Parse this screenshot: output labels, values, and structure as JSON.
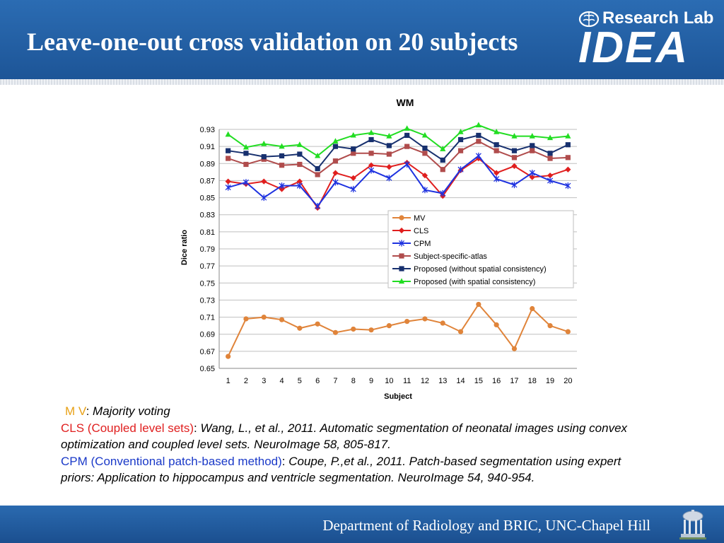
{
  "slide": {
    "title": "Leave-one-out cross validation on 20 subjects",
    "footer": "Department of Radiology and BRIC, UNC-Chapel Hill"
  },
  "logo": {
    "lab_text": "Research Lab",
    "brand_text": "IDEA",
    "brain_icon": "brain-icon"
  },
  "footer_logo_icon": "old-well-icon",
  "colors": {
    "header_blue": "#1f5a9e",
    "mv": "#e0843a",
    "cls": "#e01e1e",
    "cpm": "#1e32e0",
    "ssa": "#b04c4c",
    "prop_nosc": "#17306e",
    "prop_sc": "#22dd22",
    "note_mv": "#e8a117",
    "note_red": "#e02020",
    "note_blue": "#1a39c8"
  },
  "notes": {
    "mv_abbr": "M V",
    "mv_desc": "Majority voting",
    "cls_abbr": "CLS (Coupled level sets)",
    "cls_desc": "Wang, L., et al., 2011. Automatic segmentation of neonatal images using convex   optimization and coupled level sets. NeuroImage 58, 805-817.",
    "cpm_abbr": "CPM (Conventional patch-based method)",
    "cpm_desc": "Coupe, P.,et al., 2011. Patch-based segmentation using expert priors: Application to hippocampus and ventricle segmentation. NeuroImage 54, 940-954."
  },
  "chart_data": {
    "type": "line",
    "title": "WM",
    "xlabel": "Subject",
    "ylabel": "Dice ratio",
    "categories": [
      "1",
      "2",
      "3",
      "4",
      "5",
      "6",
      "7",
      "8",
      "9",
      "10",
      "11",
      "12",
      "13",
      "14",
      "15",
      "16",
      "17",
      "18",
      "19",
      "20"
    ],
    "ylim": [
      0.65,
      0.93
    ],
    "yticks": [
      "0.65",
      "0.67",
      "0.69",
      "0.71",
      "0.73",
      "0.75",
      "0.77",
      "0.79",
      "0.81",
      "0.83",
      "0.85",
      "0.87",
      "0.89",
      "0.91",
      "0.93"
    ],
    "grid": true,
    "legend_position": "right-middle",
    "series": [
      {
        "name": "MV",
        "marker": "circle",
        "color": "#e0843a",
        "values": [
          0.664,
          0.708,
          0.71,
          0.707,
          0.697,
          0.702,
          0.692,
          0.696,
          0.695,
          0.7,
          0.705,
          0.708,
          0.703,
          0.693,
          0.725,
          0.701,
          0.673,
          0.72,
          0.7,
          0.693
        ]
      },
      {
        "name": "CLS",
        "marker": "diamond",
        "color": "#e01e1e",
        "values": [
          0.869,
          0.866,
          0.869,
          0.86,
          0.869,
          0.838,
          0.879,
          0.873,
          0.888,
          0.886,
          0.891,
          0.876,
          0.852,
          0.882,
          0.896,
          0.879,
          0.887,
          0.874,
          0.876,
          0.883
        ]
      },
      {
        "name": "CPM",
        "marker": "star",
        "color": "#1e32e0",
        "values": [
          0.862,
          0.868,
          0.85,
          0.864,
          0.864,
          0.84,
          0.868,
          0.86,
          0.882,
          0.873,
          0.889,
          0.859,
          0.855,
          0.883,
          0.899,
          0.872,
          0.865,
          0.879,
          0.87,
          0.864
        ]
      },
      {
        "name": "Subject-specific-atlas",
        "marker": "square",
        "color": "#b04c4c",
        "values": [
          0.896,
          0.889,
          0.895,
          0.888,
          0.889,
          0.877,
          0.893,
          0.902,
          0.902,
          0.901,
          0.91,
          0.902,
          0.883,
          0.905,
          0.916,
          0.905,
          0.897,
          0.905,
          0.896,
          0.897
        ]
      },
      {
        "name": "Proposed (without spatial consistency)",
        "marker": "square",
        "color": "#17306e",
        "values": [
          0.905,
          0.902,
          0.898,
          0.899,
          0.901,
          0.884,
          0.91,
          0.907,
          0.918,
          0.911,
          0.923,
          0.908,
          0.894,
          0.918,
          0.923,
          0.912,
          0.905,
          0.911,
          0.902,
          0.912
        ]
      },
      {
        "name": "Proposed (with spatial consistency)",
        "marker": "triangle",
        "color": "#22dd22",
        "values": [
          0.924,
          0.909,
          0.913,
          0.91,
          0.912,
          0.899,
          0.916,
          0.923,
          0.926,
          0.922,
          0.931,
          0.923,
          0.907,
          0.927,
          0.935,
          0.927,
          0.922,
          0.922,
          0.92,
          0.922
        ]
      }
    ]
  }
}
